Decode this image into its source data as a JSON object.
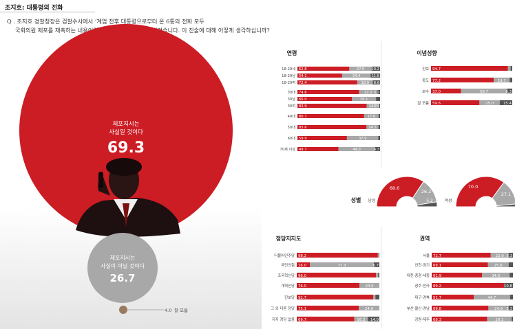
{
  "header": {
    "tag": "조지호: 대통령의 전화"
  },
  "question": {
    "line1": "Q . 조지호 경찰청장은 검찰수사에서 ‘계엄 전후 대통령으로부터 온 6통의 전화 모두",
    "line2": "국회의원 체포를 재촉하는 내용이었다’고 진술한 것으로 알려졌습니다. 이 진술에 대해 어떻게 생각하십니까?"
  },
  "colors": {
    "red": "#cc1c24",
    "gray": "#a8a8a8",
    "dark": "#555555",
    "brown": "#9a7a5e"
  },
  "chart_data": [
    {
      "type": "bubble",
      "items": [
        {
          "label": "체포지시는 사실일 것이다",
          "value": "69.3",
          "color": "#cc1c24"
        },
        {
          "label": "체포지시는 사실이 아닐 것이다",
          "value": "26.7",
          "color": "#a8a8a8"
        },
        {
          "label": "잘 모름",
          "value": "4.0",
          "color": "#9a7a5e"
        }
      ]
    },
    {
      "type": "bar",
      "stacked": true,
      "title": "연령",
      "categories": [
        "18-29세",
        "18-29남",
        "18-29여",
        "30대",
        "30남",
        "30여",
        "40대",
        "50대",
        "60대",
        "70세 이상"
      ],
      "series": [
        {
          "values": [
            62.8,
            54.1,
            72.4,
            74.6,
            66.0,
            83.9,
            80.7,
            83.6,
            59.9,
            49.7
          ]
        },
        {
          "values": [
            27.0,
            34.4,
            18.9,
            22.2,
            29.1,
            14.7,
            17.6,
            14.5,
            37.9,
            44.0
          ]
        },
        {
          "values": [
            10.2,
            11.6,
            8.6,
            3.2,
            4.9,
            1.4,
            1.7,
            1.9,
            2.2,
            6.3
          ]
        }
      ]
    },
    {
      "type": "bar",
      "stacked": true,
      "title": "이념성향",
      "categories": [
        "진보",
        "중도",
        "보수",
        "잘 모름"
      ],
      "series": [
        {
          "values": [
            94.7,
            77.2,
            37.0,
            59.6
          ]
        },
        {
          "values": [
            3.3,
            19.7,
            56.7,
            25.0
          ]
        },
        {
          "values": [
            2.0,
            3.1,
            6.3,
            15.4
          ]
        }
      ]
    },
    {
      "type": "pie",
      "title": "성별",
      "pies": [
        {
          "label": "남성",
          "values": [
            68.6,
            26.2,
            5.2
          ]
        },
        {
          "label": "여성",
          "values": [
            70.0,
            27.1,
            2.9
          ]
        }
      ]
    },
    {
      "type": "bar",
      "stacked": true,
      "title": "정당지지도",
      "categories": [
        "더불어민주당",
        "국민의힘",
        "조국혁신당",
        "개혁신당",
        "진보당",
        "그 외 다른 정당",
        "지지 정당 없음"
      ],
      "series": [
        {
          "values": [
            98.2,
            16.0,
            96.0,
            76.0,
            92.7,
            75.1,
            69.7
          ]
        },
        {
          "values": [
            1.2,
            77.3,
            2.5,
            24.0,
            2.5,
            24.9,
            16.3
          ]
        },
        {
          "values": [
            0.6,
            6.7,
            1.5,
            0,
            4.8,
            0,
            14.0
          ]
        }
      ]
    },
    {
      "type": "bar",
      "stacked": true,
      "title": "권역",
      "categories": [
        "서울",
        "인천·경기",
        "대전·충청·세종",
        "광주·전라",
        "대구·경북",
        "부산·울산·경남",
        "강원·제주"
      ],
      "series": [
        {
          "values": [
            72.7,
            69.1,
            61.9,
            89.2,
            51.7,
            69.8,
            68.3
          ]
        },
        {
          "values": [
            22.0,
            25.6,
            34.0,
            0,
            44.7,
            24.9,
            30.1
          ]
        },
        {
          "values": [
            5.3,
            5.3,
            4.1,
            10.8,
            3.6,
            5.3,
            1.6
          ]
        }
      ]
    }
  ],
  "labels": {
    "seg2_show": {
      "연령": [
        true,
        true,
        true,
        true,
        true,
        true,
        true,
        true,
        true,
        true
      ],
      "이념성향": [
        false,
        true,
        true,
        true
      ],
      "정당지지도": [
        false,
        true,
        false,
        true,
        false,
        true,
        true
      ],
      "권역": [
        true,
        true,
        true,
        false,
        true,
        true,
        true
      ]
    },
    "seg3_show": {
      "연령": [
        true,
        true,
        true,
        true,
        false,
        true,
        false,
        false,
        false,
        true
      ],
      "이념성향": [
        false,
        false,
        true,
        true
      ],
      "정당지지도": [
        false,
        true,
        false,
        false,
        false,
        false,
        true
      ],
      "권역": [
        true,
        false,
        false,
        true,
        false,
        true,
        false
      ]
    },
    "seg3_fmt": {
      "정당지지도": [
        "",
        "6.7",
        "",
        "",
        "",
        "",
        "14.0"
      ],
      "권역": [
        "5.3",
        "",
        "",
        "10.8",
        "",
        "5.3",
        ""
      ]
    },
    "seg2_fmt": {
      "이념성향": [
        "",
        "19.7",
        "56.7",
        "25.0"
      ],
      "정당지지도": [
        "",
        "77.3",
        "",
        "24.0",
        "",
        "24.9",
        "16.3"
      ],
      "권역": [
        "22.0",
        "25.6",
        "34.0",
        "",
        "44.7",
        "24.9",
        "30.1"
      ]
    }
  }
}
